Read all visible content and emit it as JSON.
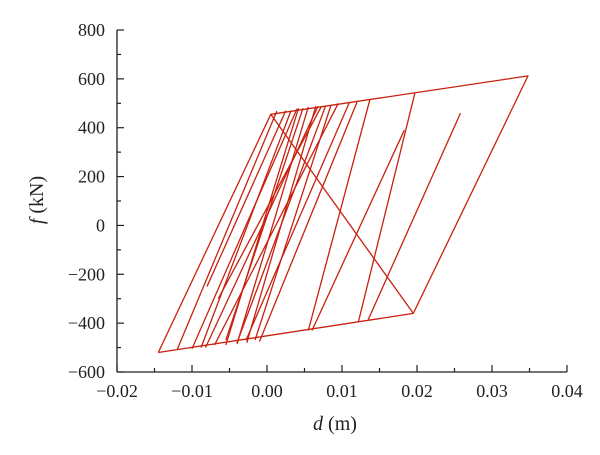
{
  "chart_data": {
    "type": "line",
    "title": "",
    "xlabel": {
      "var": "d",
      "unit": " (m)"
    },
    "ylabel": {
      "var": "f",
      "unit": " (kN)"
    },
    "xlim": [
      -0.02,
      0.04
    ],
    "ylim": [
      -600,
      800
    ],
    "xticks": [
      -0.02,
      -0.01,
      0.0,
      0.01,
      0.02,
      0.03,
      0.04
    ],
    "xtick_labels": [
      "−0.02",
      "−0.01",
      "0.00",
      "0.01",
      "0.02",
      "0.03",
      "0.04"
    ],
    "yticks": [
      -600,
      -400,
      -200,
      0,
      200,
      400,
      600,
      800
    ],
    "ytick_labels": [
      "−600",
      "−400",
      "−200",
      "0",
      "200",
      "400",
      "600",
      "800"
    ],
    "grid": false,
    "legend": "none",
    "line_color": "#c8200e",
    "series": [
      {
        "segments": [
          [
            [
              -0.0145,
              -520
            ],
            [
              0.0195,
              -360
            ],
            [
              0.0348,
              612
            ],
            [
              0.0005,
              455
            ],
            [
              -0.0145,
              -520
            ]
          ],
          [
            [
              0.0195,
              -360
            ],
            [
              0.0005,
              455
            ]
          ],
          [
            [
              0.0197,
              540
            ],
            [
              0.0122,
              -393
            ]
          ],
          [
            [
              0.0072,
              484
            ],
            [
              -0.0065,
              -300
            ]
          ],
          [
            [
              0.0095,
              500
            ],
            [
              -0.007,
              -490
            ]
          ],
          [
            [
              0.011,
              505
            ],
            [
              -0.0028,
              -470
            ]
          ],
          [
            [
              0.0137,
              514
            ],
            [
              0.0055,
              -430
            ]
          ],
          [
            [
              0.0085,
              490
            ],
            [
              -0.0016,
              -470
            ]
          ],
          [
            [
              0.0042,
              480
            ],
            [
              -0.0055,
              -490
            ]
          ],
          [
            [
              0.0055,
              485
            ],
            [
              -0.004,
              -485
            ]
          ],
          [
            [
              0.0032,
              470
            ],
            [
              -0.0088,
              -500
            ]
          ],
          [
            [
              0.0065,
              488
            ],
            [
              -0.0027,
              -480
            ]
          ],
          [
            [
              0.0013,
              468
            ],
            [
              -0.012,
              -510
            ]
          ],
          [
            [
              0.0025,
              470
            ],
            [
              -0.008,
              -250
            ]
          ],
          [
            [
              0.0048,
              480
            ],
            [
              -0.0055,
              -470
            ]
          ],
          [
            [
              0.0068,
              488
            ],
            [
              -0.0082,
              -500
            ]
          ],
          [
            [
              0.0078,
              488
            ],
            [
              -0.004,
              -480
            ]
          ],
          [
            [
              0.004,
              478
            ],
            [
              -0.01,
              -505
            ]
          ],
          [
            [
              0.0183,
              390
            ],
            [
              0.006,
              -430
            ]
          ],
          [
            [
              0.0258,
              460
            ],
            [
              0.0135,
              -385
            ]
          ],
          [
            [
              0.012,
              505
            ],
            [
              -0.001,
              -475
            ]
          ]
        ]
      }
    ]
  }
}
